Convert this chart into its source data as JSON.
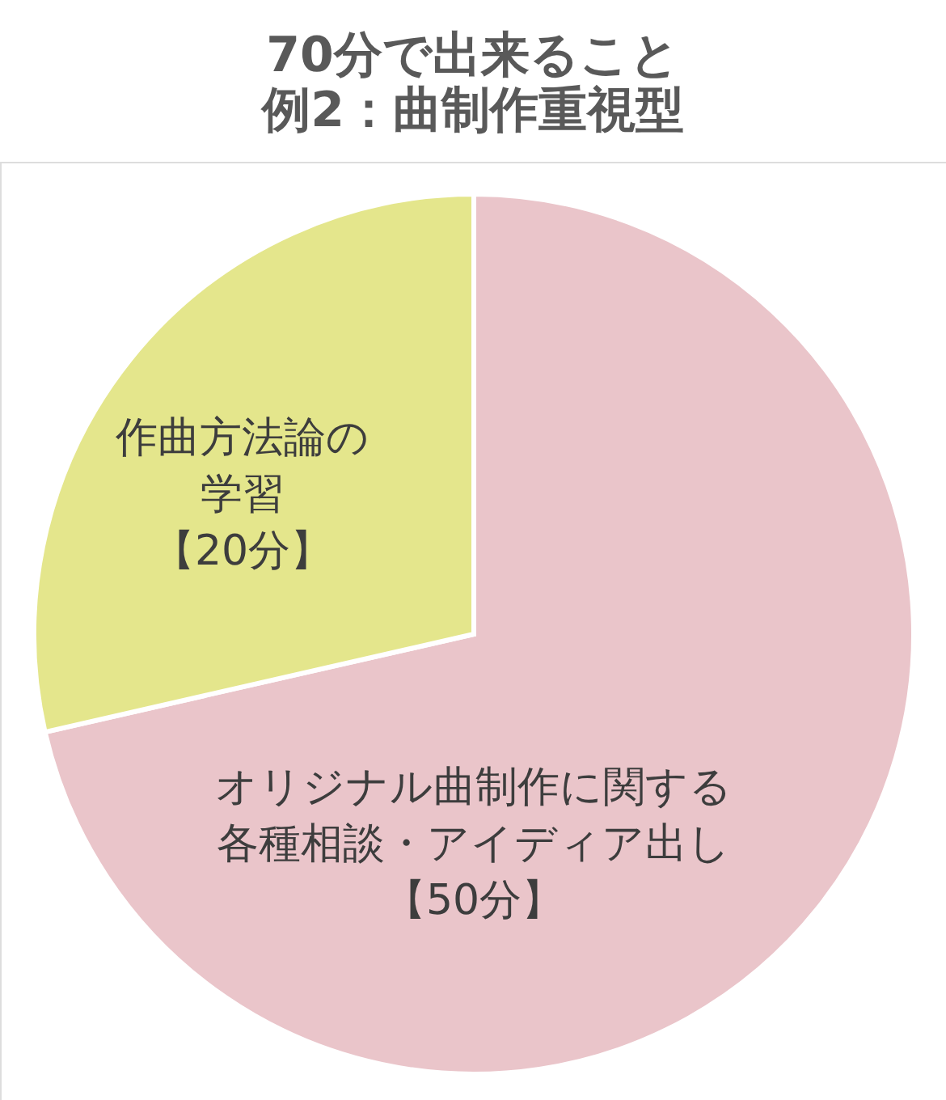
{
  "chart_data": {
    "type": "pie",
    "title": "70分で出来ること",
    "subtitle": "例2：曲制作重視型",
    "categories": [
      "オリジナル曲制作に関する各種相談・アイディア出し",
      "作曲方法論の学習"
    ],
    "values": [
      50,
      20
    ],
    "colors": [
      "#eac5ca",
      "#e4e68c"
    ],
    "value_labels": [
      "【50分】",
      "【20分】"
    ]
  }
}
